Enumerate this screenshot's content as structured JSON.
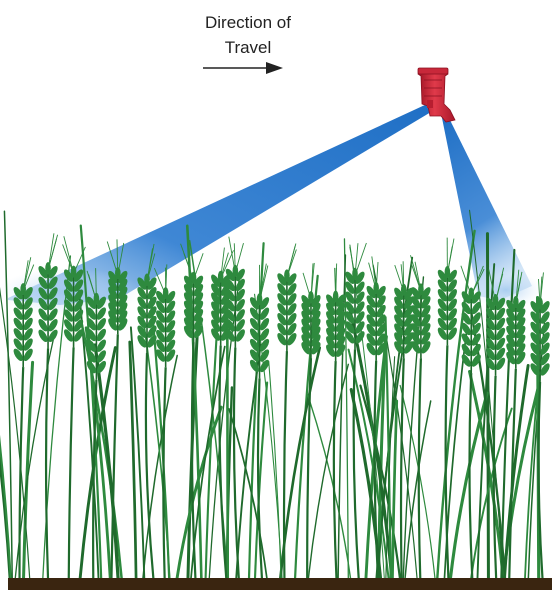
{
  "caption": {
    "line1": "Direction of",
    "line2": "Travel"
  },
  "icons": {
    "arrow": "arrow-right-icon",
    "nozzle": "spray-nozzle-icon"
  },
  "colors": {
    "nozzle": "#d42a3a",
    "nozzle_dark": "#9e1424",
    "spray": "#1f6fc5",
    "wheat": "#2e8a3e",
    "wheat_dark": "#1f6a2c",
    "ground": "#3a2510",
    "text": "#222222"
  }
}
